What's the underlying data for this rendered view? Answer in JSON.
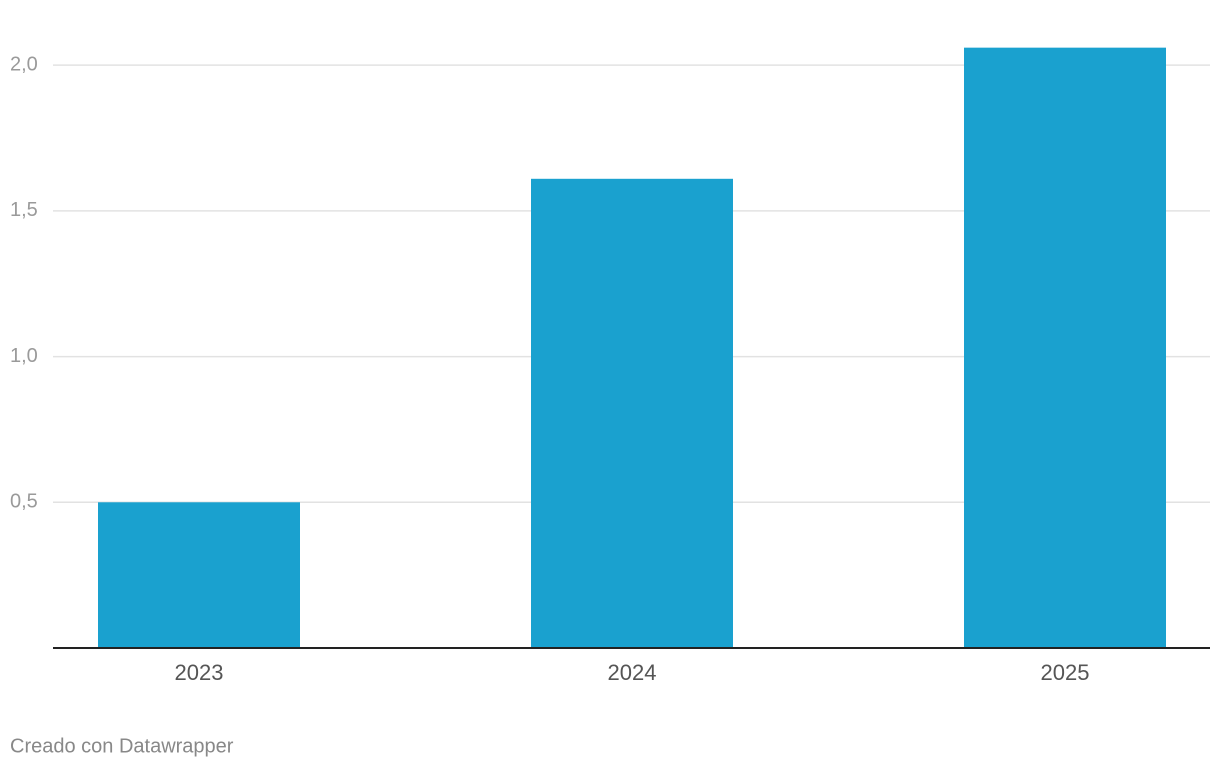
{
  "chart_data": {
    "type": "bar",
    "categories": [
      "2023",
      "2024",
      "2025"
    ],
    "values": [
      0.5,
      1.61,
      2.06
    ],
    "color": "#1aa1cf",
    "ylim": [
      0,
      2.1
    ],
    "yticks": [
      {
        "value": 0.5,
        "label": "0,5"
      },
      {
        "value": 1.0,
        "label": "1,0"
      },
      {
        "value": 1.5,
        "label": "1,5"
      },
      {
        "value": 2.0,
        "label": "2,0"
      }
    ],
    "grid": true,
    "footer": "Creado con Datawrapper"
  }
}
